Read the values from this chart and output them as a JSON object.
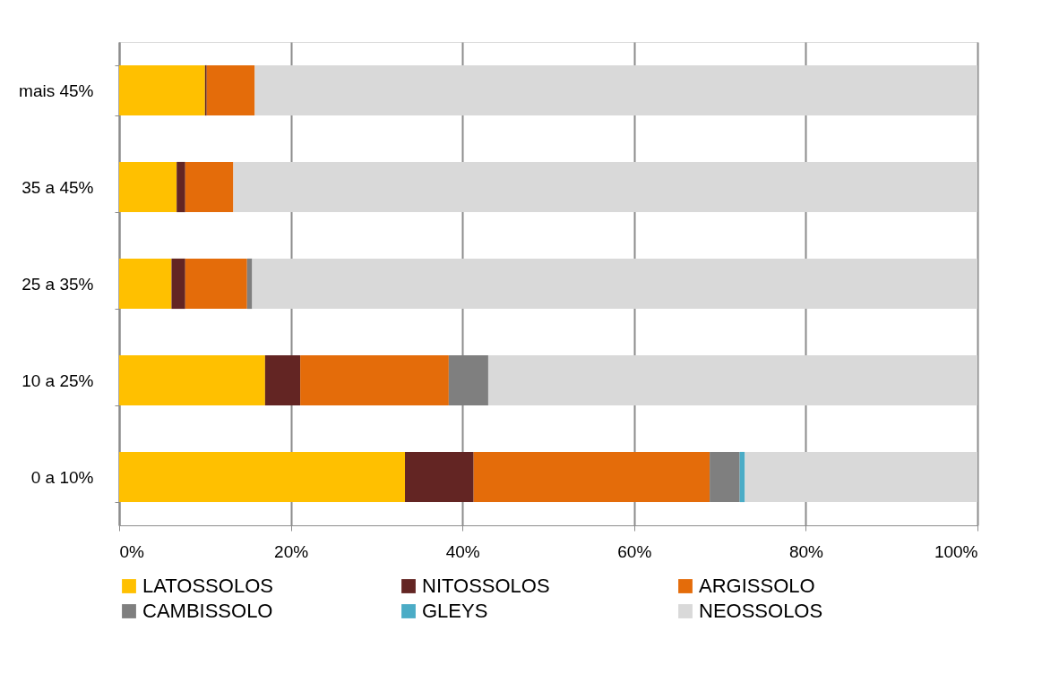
{
  "chart_data": {
    "type": "bar",
    "orientation": "horizontal",
    "stacked": true,
    "categories": [
      "mais 45%",
      "35 a 45%",
      "25 a 35%",
      "10 a 25%",
      "0 a 10%"
    ],
    "series": [
      {
        "name": "LATOSSOLOS",
        "color": "#ffc000",
        "values": [
          10.0,
          6.7,
          6.1,
          17.0,
          33.3
        ]
      },
      {
        "name": "NITOSSOLOS",
        "color": "#632523",
        "values": [
          0.2,
          1.0,
          1.6,
          4.1,
          8.0
        ]
      },
      {
        "name": "ARGISSOLO",
        "color": "#e46c0a",
        "values": [
          5.6,
          5.6,
          7.2,
          17.3,
          27.5
        ]
      },
      {
        "name": "CAMBISSOLO",
        "color": "#7f7f7f",
        "values": [
          0,
          0,
          0.6,
          4.6,
          3.5
        ]
      },
      {
        "name": "GLEYS",
        "color": "#4bacc6",
        "values": [
          0,
          0,
          0,
          0,
          0.6
        ]
      },
      {
        "name": "NEOSSOLOS",
        "color": "#d9d9d9",
        "values": [
          84.2,
          86.7,
          84.5,
          57.0,
          27.1
        ]
      }
    ],
    "xlim": [
      0,
      100
    ],
    "xticks": [
      {
        "value": 0,
        "label": "0%"
      },
      {
        "value": 20,
        "label": "20%"
      },
      {
        "value": 40,
        "label": "40%"
      },
      {
        "value": 60,
        "label": "60%"
      },
      {
        "value": 80,
        "label": "80%"
      },
      {
        "value": 100,
        "label": "100%"
      }
    ],
    "grid": "x",
    "legend": "bottom"
  }
}
